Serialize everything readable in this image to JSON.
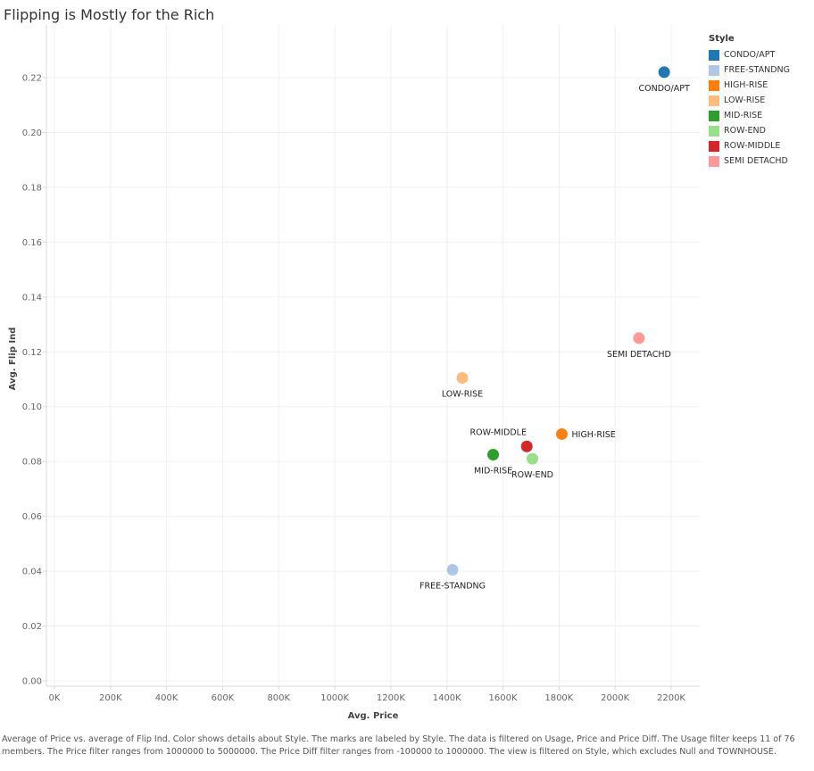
{
  "chart_data": {
    "type": "scatter",
    "title": "Flipping is Mostly for the Rich",
    "xlabel": "Avg. Price",
    "ylabel": "Avg. Flip Ind",
    "xlim": [
      0,
      2300000
    ],
    "ylim": [
      0,
      0.23
    ],
    "xticks": [
      0,
      200000,
      400000,
      600000,
      800000,
      1000000,
      1200000,
      1400000,
      1600000,
      1800000,
      2000000,
      2200000
    ],
    "xtick_labels": [
      "0K",
      "200K",
      "400K",
      "600K",
      "800K",
      "1000K",
      "1200K",
      "1400K",
      "1600K",
      "1800K",
      "2000K",
      "2200K"
    ],
    "yticks": [
      0,
      0.02,
      0.04,
      0.06,
      0.08,
      0.1,
      0.12,
      0.14,
      0.16,
      0.18,
      0.2,
      0.22
    ],
    "ytick_labels": [
      "0.00",
      "0.02",
      "0.04",
      "0.06",
      "0.08",
      "0.10",
      "0.12",
      "0.14",
      "0.16",
      "0.18",
      "0.20",
      "0.22"
    ],
    "grid": true,
    "legend_title": "Style",
    "legend_position": "top-right",
    "points": [
      {
        "style": "CONDO/APT",
        "x": 2175000,
        "y": 0.222,
        "color": "#1f77b4",
        "label_pos": "below"
      },
      {
        "style": "FREE-STANDNG",
        "x": 1420000,
        "y": 0.0405,
        "color": "#aec7e8",
        "label_pos": "below"
      },
      {
        "style": "HIGH-RISE",
        "x": 1810000,
        "y": 0.09,
        "color": "#ff7f0e",
        "label_pos": "right"
      },
      {
        "style": "LOW-RISE",
        "x": 1455000,
        "y": 0.1105,
        "color": "#ffbb78",
        "label_pos": "below"
      },
      {
        "style": "MID-RISE",
        "x": 1565000,
        "y": 0.0825,
        "color": "#2ca02c",
        "label_pos": "below"
      },
      {
        "style": "ROW-END",
        "x": 1705000,
        "y": 0.081,
        "color": "#98df8a",
        "label_pos": "below"
      },
      {
        "style": "ROW-MIDDLE",
        "x": 1685000,
        "y": 0.0855,
        "color": "#d62728",
        "label_pos": "above-left"
      },
      {
        "style": "SEMI DETACHD",
        "x": 2085000,
        "y": 0.125,
        "color": "#ff9896",
        "label_pos": "below"
      }
    ]
  },
  "caption": "Average of Price vs. average of Flip Ind.  Color shows details about Style.  The marks are labeled by Style. The data is filtered on Usage, Price and Price Diff. The Usage filter keeps 11 of 76 members. The Price filter ranges from 1000000 to 5000000. The Price Diff filter ranges from -100000 to 1000000. The view is filtered on Style, which excludes Null and TOWNHOUSE."
}
